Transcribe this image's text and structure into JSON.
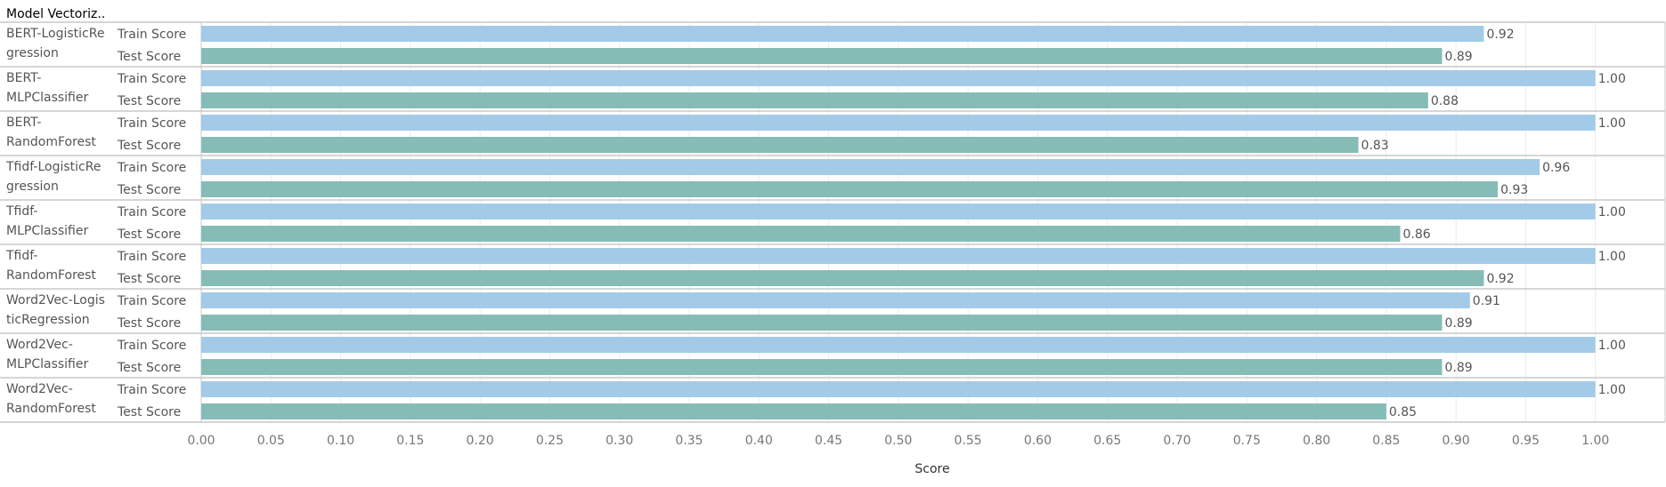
{
  "column_header": "Model Vectoriz..",
  "chart_data": {
    "type": "bar",
    "orientation": "horizontal",
    "title": "",
    "xlabel": "Score",
    "ylabel": "",
    "xlim": [
      0,
      1.05
    ],
    "x_ticks": [
      "0.00",
      "0.05",
      "0.10",
      "0.15",
      "0.20",
      "0.25",
      "0.30",
      "0.35",
      "0.40",
      "0.45",
      "0.50",
      "0.55",
      "0.60",
      "0.65",
      "0.70",
      "0.75",
      "0.80",
      "0.85",
      "0.90",
      "0.95",
      "1.00"
    ],
    "grid": "vertical",
    "metrics": [
      "Train Score",
      "Test Score"
    ],
    "metric_colors": [
      "#a3cbe8",
      "#86bcb6"
    ],
    "groups": [
      {
        "name_lines": [
          "BERT-LogisticRe",
          "gression"
        ],
        "values": [
          0.92,
          0.89
        ],
        "labels": [
          "0.92",
          "0.89"
        ]
      },
      {
        "name_lines": [
          "BERT-",
          "MLPClassifier"
        ],
        "values": [
          1.0,
          0.88
        ],
        "labels": [
          "1.00",
          "0.88"
        ]
      },
      {
        "name_lines": [
          "BERT-",
          "RandomForest"
        ],
        "values": [
          1.0,
          0.83
        ],
        "labels": [
          "1.00",
          "0.83"
        ]
      },
      {
        "name_lines": [
          "Tfidf-LogisticRe",
          "gression"
        ],
        "values": [
          0.96,
          0.93
        ],
        "labels": [
          "0.96",
          "0.93"
        ]
      },
      {
        "name_lines": [
          "Tfidf-",
          "MLPClassifier"
        ],
        "values": [
          1.0,
          0.86
        ],
        "labels": [
          "1.00",
          "0.86"
        ]
      },
      {
        "name_lines": [
          "Tfidf-",
          "RandomForest"
        ],
        "values": [
          1.0,
          0.92
        ],
        "labels": [
          "1.00",
          "0.92"
        ]
      },
      {
        "name_lines": [
          "Word2Vec-Logis",
          "ticRegression"
        ],
        "values": [
          0.91,
          0.89
        ],
        "labels": [
          "0.91",
          "0.89"
        ]
      },
      {
        "name_lines": [
          "Word2Vec-",
          "MLPClassifier"
        ],
        "values": [
          1.0,
          0.89
        ],
        "labels": [
          "1.00",
          "0.89"
        ]
      },
      {
        "name_lines": [
          "Word2Vec-",
          "RandomForest"
        ],
        "values": [
          1.0,
          0.85
        ],
        "labels": [
          "1.00",
          "0.85"
        ]
      }
    ]
  }
}
